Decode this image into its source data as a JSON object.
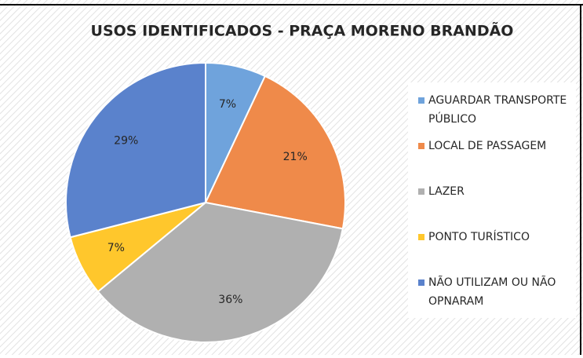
{
  "chart_data": {
    "type": "pie",
    "title": "USOS IDENTIFICADOS - PRAÇA MORENO BRANDÃO",
    "categories": [
      "AGUARDAR TRANSPORTE PÚBLICO",
      "LOCAL DE PASSAGEM",
      "LAZER",
      "PONTO TURÍSTICO",
      "NÃO UTILIZAM OU NÃO OPNARAM"
    ],
    "values": [
      7,
      21,
      36,
      7,
      29
    ],
    "value_labels": [
      "7%",
      "21%",
      "36%",
      "7%",
      "29%"
    ],
    "colors": [
      "#6fa3dc",
      "#ef8a4a",
      "#b0b0b0",
      "#ffc72c",
      "#5a82cc"
    ],
    "legend": "right"
  }
}
